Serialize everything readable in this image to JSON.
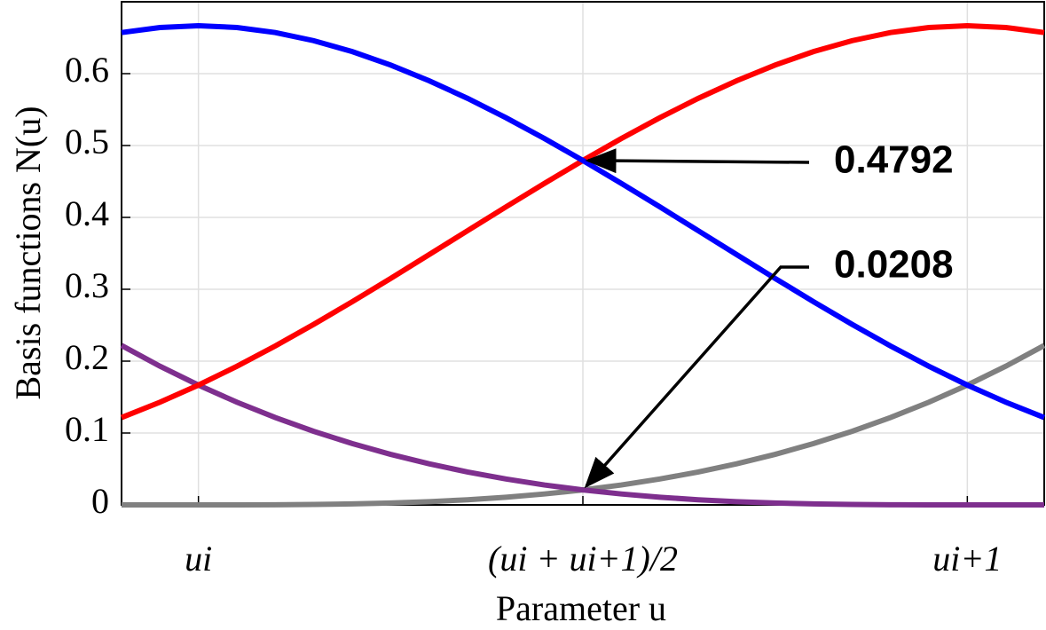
{
  "chart_data": {
    "type": "line",
    "xlabel": "Parameter u",
    "ylabel": "Basis functions N(u)",
    "x": [
      -0.1,
      -0.05,
      0,
      0.05,
      0.1,
      0.15,
      0.2,
      0.25,
      0.3,
      0.35,
      0.4,
      0.45,
      0.5,
      0.55,
      0.6,
      0.65,
      0.7,
      0.75,
      0.8,
      0.85,
      0.9,
      0.95,
      1,
      1.05,
      1.1
    ],
    "series": [
      {
        "color": "#808080",
        "values": [
          0,
          0,
          0,
          2e-05,
          0.00017,
          0.00056,
          0.00133,
          0.0026,
          0.0045,
          0.00715,
          0.01067,
          0.01519,
          0.02083,
          0.02773,
          0.036,
          0.04577,
          0.05717,
          0.07031,
          0.08533,
          0.10235,
          0.1215,
          0.1429,
          0.16667,
          0.19294,
          0.22183
        ]
      },
      {
        "color": "#7e2f8e",
        "values": [
          0.22183,
          0.19294,
          0.16667,
          0.1429,
          0.1215,
          0.10235,
          0.08533,
          0.07031,
          0.05717,
          0.04577,
          0.036,
          0.02773,
          0.02083,
          0.01519,
          0.01067,
          0.00715,
          0.0045,
          0.0026,
          0.00133,
          0.00056,
          0.00017,
          2e-05,
          0,
          0,
          0
        ]
      },
      {
        "color": "#ff0000",
        "values": [
          0.1215,
          0.1429,
          0.16667,
          0.19285,
          0.22117,
          0.25123,
          0.28267,
          0.3151,
          0.34817,
          0.38148,
          0.41467,
          0.44735,
          0.47917,
          0.50973,
          0.53867,
          0.5656,
          0.59017,
          0.61198,
          0.63067,
          0.64585,
          0.65717,
          0.66423,
          0.66667,
          0.66423,
          0.65717
        ]
      },
      {
        "color": "#0000ff",
        "values": [
          0.65717,
          0.66423,
          0.66667,
          0.66423,
          0.65717,
          0.64585,
          0.63067,
          0.61198,
          0.59017,
          0.5656,
          0.53867,
          0.50973,
          0.47917,
          0.44735,
          0.41467,
          0.38148,
          0.34817,
          0.3151,
          0.28267,
          0.25123,
          0.22117,
          0.19285,
          0.16667,
          0.1429,
          0.1215
        ]
      }
    ],
    "xlim": [
      -0.1,
      1.1
    ],
    "ylim": [
      0,
      0.7
    ],
    "xticks": [
      {
        "value": 0,
        "label": "ui"
      },
      {
        "value": 0.5,
        "label": "(ui + ui+1)/2"
      },
      {
        "value": 1,
        "label": "ui+1"
      }
    ],
    "yticks": [
      0,
      0.1,
      0.2,
      0.3,
      0.4,
      0.5,
      0.6
    ],
    "grid": true,
    "annotations": [
      {
        "text": "0.4792",
        "x": 0.5,
        "y": 0.4792
      },
      {
        "text": "0.0208",
        "x": 0.5,
        "y": 0.0208
      }
    ]
  }
}
